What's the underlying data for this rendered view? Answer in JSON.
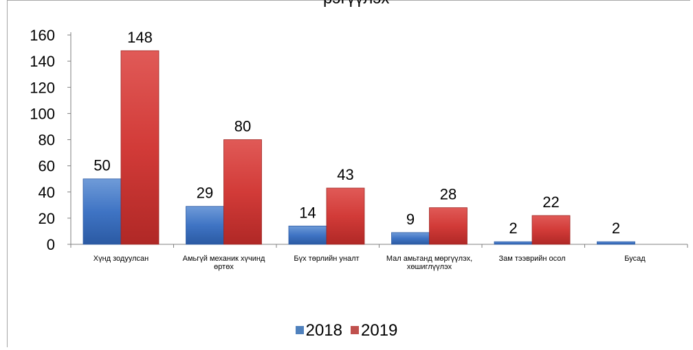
{
  "chart_data": {
    "type": "bar",
    "title": "рэгүүлэх",
    "categories": [
      [
        "Хүнд зодуулсан"
      ],
      [
        "Амьгүй механик хүчинд",
        "өртөх"
      ],
      [
        "Бүх төрлийн уналт"
      ],
      [
        "Мал амьтанд мөргүүлэх,",
        "хөшиглүүлэх"
      ],
      [
        "Зам тээврийн осол"
      ],
      [
        "Бусад"
      ]
    ],
    "series": [
      {
        "name": "2018",
        "color": "#4f81bd",
        "values": [
          50,
          29,
          14,
          9,
          2,
          2
        ]
      },
      {
        "name": "2019",
        "color": "#c0504d",
        "values": [
          148,
          80,
          43,
          28,
          22,
          null
        ]
      }
    ],
    "ylim": [
      0,
      160
    ],
    "yticks": [
      0,
      20,
      40,
      60,
      80,
      100,
      120,
      140,
      160
    ],
    "legend_position": "bottom",
    "grid": false
  }
}
